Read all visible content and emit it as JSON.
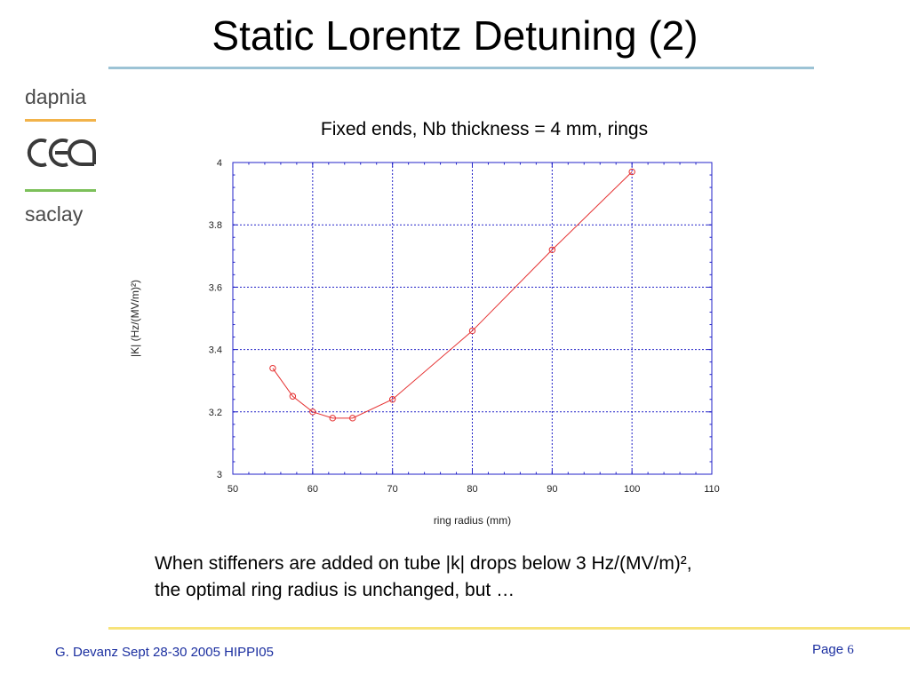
{
  "slide": {
    "title": "Static Lorentz Detuning (2)",
    "logo": {
      "top_word": "dapnia",
      "middle_word": "cea",
      "bottom_word": "saclay"
    },
    "note_lines": [
      "When stiffeners are added on tube |k| drops below 3 Hz/(MV/m)²,",
      "the optimal ring radius is unchanged, but …"
    ],
    "footer": {
      "left": "G. Devanz Sept 28-30 2005 HIPPI05",
      "page_label": "Page",
      "page_number": "6"
    }
  },
  "colors": {
    "title_rule": "#9cc3d5",
    "footer_rule": "#f7e37a",
    "footer_text": "#1b2fa0",
    "series": "#e53030",
    "grid": "#2323c8",
    "logo_orange": "#f2b34a",
    "logo_green": "#7cc05a"
  },
  "chart_data": {
    "type": "line",
    "title": "Fixed ends, Nb thickness = 4 mm, rings",
    "xlabel": "ring radius (mm)",
    "ylabel": "|K| (Hz/(MV/m)²)",
    "xlim": [
      50,
      110
    ],
    "ylim": [
      3,
      4
    ],
    "xticks": [
      50,
      60,
      70,
      80,
      90,
      100,
      110
    ],
    "yticks": [
      3,
      3.2,
      3.4,
      3.6,
      3.8,
      4
    ],
    "grid": true,
    "series": [
      {
        "x": [
          55,
          57.5,
          60,
          62.5,
          65,
          70,
          80,
          90,
          100
        ],
        "y": [
          3.34,
          3.25,
          3.2,
          3.18,
          3.18,
          3.24,
          3.46,
          3.72,
          3.97
        ]
      }
    ]
  }
}
